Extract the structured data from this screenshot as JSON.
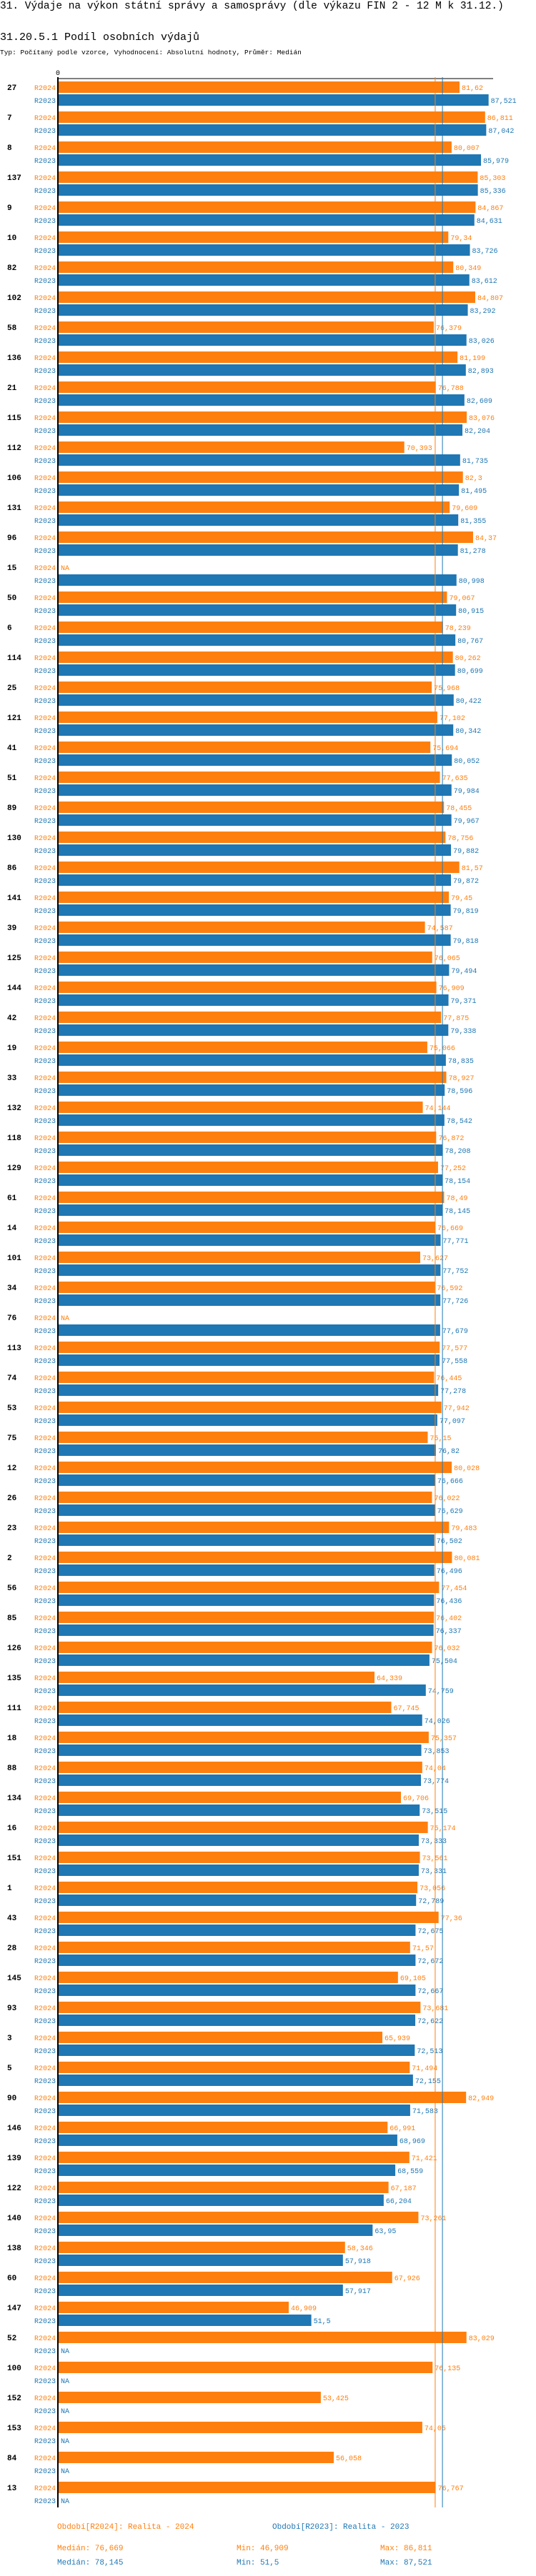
{
  "header": {
    "title": "31. Výdaje na výkon státní správy a samosprávy (dle výkazu FIN 2 - 12 M k 31.12.)",
    "subtitle": "31.20.5.1 Podíl osobních výdajů",
    "typ": "Typ: Počítaný podle vzorce, Vyhodnocení: Absolutní hodnoty, Průměr: Medián"
  },
  "colors": {
    "r2024": "#ff7f0e",
    "r2023": "#1f77b4",
    "axis": "#000000"
  },
  "chart_data": {
    "type": "bar",
    "orientation": "horizontal",
    "title": "31.20.5.1 Podíl osobních výdajů",
    "axis_zero_label": "0",
    "xlim": [
      0,
      88.4
    ],
    "na_label": "NA",
    "series_labels": [
      "R2024",
      "R2023"
    ],
    "categories": [
      "27",
      "7",
      "8",
      "137",
      "9",
      "10",
      "82",
      "102",
      "58",
      "136",
      "21",
      "115",
      "112",
      "106",
      "131",
      "96",
      "15",
      "50",
      "6",
      "114",
      "25",
      "121",
      "41",
      "51",
      "89",
      "130",
      "86",
      "141",
      "39",
      "125",
      "144",
      "42",
      "19",
      "33",
      "132",
      "118",
      "129",
      "61",
      "14",
      "101",
      "34",
      "76",
      "113",
      "74",
      "53",
      "75",
      "12",
      "26",
      "23",
      "2",
      "56",
      "85",
      "126",
      "135",
      "111",
      "18",
      "88",
      "134",
      "16",
      "151",
      "1",
      "43",
      "28",
      "145",
      "93",
      "3",
      "5",
      "90",
      "146",
      "139",
      "122",
      "140",
      "138",
      "60",
      "147",
      "52",
      "100",
      "152",
      "153",
      "84",
      "13"
    ],
    "series": [
      {
        "name": "R2024",
        "values": [
          81.62,
          86.811,
          80.007,
          85.303,
          84.867,
          79.34,
          80.349,
          84.807,
          76.379,
          81.199,
          76.788,
          83.076,
          70.393,
          82.3,
          79.609,
          84.37,
          null,
          79.067,
          78.239,
          80.262,
          75.968,
          77.102,
          75.694,
          77.635,
          78.455,
          78.756,
          81.57,
          79.45,
          74.587,
          76.065,
          76.909,
          77.875,
          75.066,
          78.927,
          74.144,
          76.872,
          77.252,
          78.49,
          76.669,
          73.627,
          76.592,
          null,
          77.577,
          76.445,
          77.942,
          75.15,
          80.028,
          76.022,
          79.483,
          80.081,
          77.454,
          76.402,
          76.032,
          64.339,
          67.745,
          75.357,
          74.04,
          69.706,
          75.174,
          73.561,
          73.056,
          77.36,
          71.57,
          69.105,
          73.681,
          65.939,
          71.494,
          82.949,
          66.991,
          71.421,
          67.187,
          73.261,
          58.346,
          67.926,
          46.909,
          83.029,
          76.135,
          53.425,
          74.05,
          56.058,
          76.767
        ]
      },
      {
        "name": "R2023",
        "values": [
          87.521,
          87.042,
          85.979,
          85.336,
          84.631,
          83.726,
          83.612,
          83.292,
          83.026,
          82.893,
          82.609,
          82.204,
          81.735,
          81.495,
          81.355,
          81.278,
          80.998,
          80.915,
          80.767,
          80.699,
          80.422,
          80.342,
          80.052,
          79.984,
          79.967,
          79.882,
          79.872,
          79.819,
          79.818,
          79.494,
          79.371,
          79.338,
          78.835,
          78.596,
          78.542,
          78.208,
          78.154,
          78.145,
          77.771,
          77.752,
          77.726,
          77.679,
          77.558,
          77.278,
          77.097,
          76.82,
          76.666,
          76.629,
          76.502,
          76.496,
          76.436,
          76.337,
          75.504,
          74.759,
          74.026,
          73.853,
          73.774,
          73.515,
          73.333,
          73.331,
          72.789,
          72.675,
          72.672,
          72.667,
          72.622,
          72.513,
          72.155,
          71.583,
          68.969,
          68.559,
          66.204,
          63.95,
          57.918,
          57.917,
          51.5,
          null,
          null,
          null,
          null,
          null,
          null
        ]
      }
    ],
    "medians": {
      "R2024": 76.669,
      "R2023": 78.145
    }
  },
  "legend": {
    "r2024": "Období[R2024]: Realita - 2024",
    "r2023": "Období[R2023]: Realita - 2023",
    "stats2024": {
      "median": "Medián: 76,669",
      "min": "Min: 46,909",
      "max": "Max: 86,811"
    },
    "stats2023": {
      "median": "Medián: 78,145",
      "min": "Min: 51,5",
      "max": "Max: 87,521"
    }
  }
}
